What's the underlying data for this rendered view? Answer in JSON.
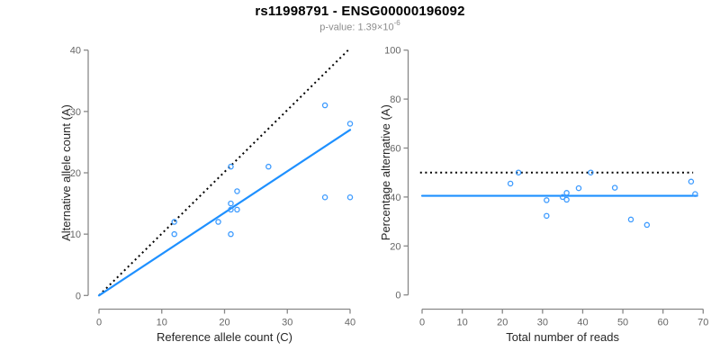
{
  "header": {
    "title": "rs11998791 - ENSG00000196092",
    "p_value_label": "p-value: 1.39×10",
    "p_value_exponent": "-6"
  },
  "colors": {
    "accent_blue": "#1E90FF",
    "point_blue": "#3D9BFF",
    "dotted_black": "#000000",
    "axis_gray": "#888888",
    "tick_label_gray": "#666666",
    "axis_title_dark": "#262626",
    "subtitle_gray": "#8C8C8C",
    "background": "#FFFFFF"
  },
  "chart_data": [
    {
      "type": "scatter",
      "panel": "left",
      "xlabel": "Reference allele count (C)",
      "ylabel": "Alternative allele count (A)",
      "xlim": [
        0,
        40
      ],
      "ylim": [
        0,
        40
      ],
      "xticks": [
        0,
        10,
        20,
        30,
        40
      ],
      "yticks": [
        0,
        10,
        20,
        30,
        40
      ],
      "grid": false,
      "points": [
        [
          12,
          10
        ],
        [
          12,
          12
        ],
        [
          19,
          12
        ],
        [
          21,
          10
        ],
        [
          21,
          14
        ],
        [
          21,
          15
        ],
        [
          21,
          21
        ],
        [
          22,
          14
        ],
        [
          22,
          17
        ],
        [
          27,
          21
        ],
        [
          36,
          16
        ],
        [
          36,
          31
        ],
        [
          40,
          16
        ],
        [
          40,
          28
        ]
      ],
      "lines": [
        {
          "name": "identity-line",
          "style": "dotted",
          "color": "#000000",
          "x1": 0,
          "y1": 0,
          "x2": 39.7,
          "y2": 40
        },
        {
          "name": "regression-line",
          "style": "solid",
          "color": "#1E90FF",
          "x1": 0,
          "y1": 0,
          "x2": 40,
          "y2": 27
        }
      ]
    },
    {
      "type": "scatter",
      "panel": "right",
      "xlabel": "Total number of reads",
      "ylabel": "Percentage alternative (A)",
      "xlim": [
        0,
        70
      ],
      "ylim": [
        0,
        100
      ],
      "xticks": [
        0,
        10,
        20,
        30,
        40,
        50,
        60,
        70
      ],
      "yticks": [
        0,
        20,
        40,
        60,
        80,
        100
      ],
      "grid": false,
      "points": [
        [
          22,
          45.5
        ],
        [
          24,
          50
        ],
        [
          31,
          32.3
        ],
        [
          31,
          38.7
        ],
        [
          35,
          40
        ],
        [
          36,
          38.9
        ],
        [
          36,
          41.7
        ],
        [
          39,
          43.6
        ],
        [
          42,
          50
        ],
        [
          48,
          43.8
        ],
        [
          52,
          30.8
        ],
        [
          56,
          28.6
        ],
        [
          67,
          46.3
        ],
        [
          68,
          41.2
        ]
      ],
      "lines": [
        {
          "name": "fifty-percent-line",
          "style": "dotted",
          "color": "#000000",
          "x1": -0.5,
          "y1": 50,
          "x2": 67.5,
          "y2": 50
        },
        {
          "name": "mean-percentage-line",
          "style": "solid",
          "color": "#1E90FF",
          "x1": 0,
          "y1": 40.5,
          "x2": 68.5,
          "y2": 40.5
        }
      ]
    }
  ]
}
